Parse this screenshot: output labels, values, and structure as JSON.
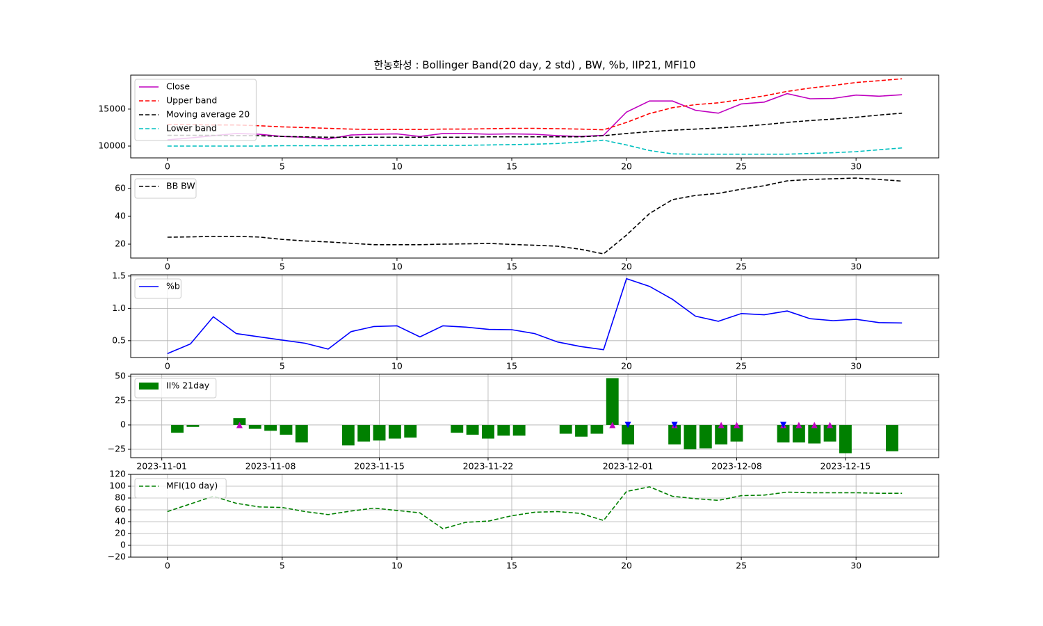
{
  "chart_data": [
    {
      "type": "line",
      "title": "한농화성 : Bollinger Band(20 day, 2 std) , BW, %b, IIP21, MFI10",
      "x": [
        0,
        1,
        2,
        3,
        4,
        5,
        6,
        7,
        8,
        9,
        10,
        11,
        12,
        13,
        14,
        15,
        16,
        17,
        18,
        19,
        20,
        21,
        22,
        23,
        24,
        25,
        26,
        27,
        28,
        29,
        30,
        31,
        32
      ],
      "series": [
        {
          "name": "Close",
          "color": "#bf00bf",
          "style": "solid",
          "values": [
            10850,
            11100,
            11400,
            11700,
            11600,
            11300,
            11200,
            10950,
            11500,
            11600,
            11650,
            11300,
            11700,
            11700,
            11600,
            11650,
            11600,
            11400,
            11300,
            11450,
            14600,
            16100,
            16100,
            14850,
            14450,
            15700,
            15950,
            17100,
            16400,
            16450,
            16900,
            16750,
            16950
          ]
        },
        {
          "name": "Upper band",
          "color": "#ff0000",
          "style": "dashed",
          "values": [
            12900,
            12900,
            12850,
            12850,
            12750,
            12600,
            12500,
            12400,
            12300,
            12250,
            12250,
            12250,
            12300,
            12300,
            12350,
            12400,
            12400,
            12350,
            12300,
            12200,
            13200,
            14400,
            15200,
            15600,
            15850,
            16300,
            16800,
            17400,
            17850,
            18200,
            18600,
            18850,
            19100
          ]
        },
        {
          "name": "Moving average 20",
          "color": "#000000",
          "style": "dashed",
          "values": [
            11450,
            11450,
            11450,
            11400,
            11400,
            11300,
            11250,
            11200,
            11200,
            11200,
            11200,
            11200,
            11200,
            11200,
            11250,
            11250,
            11250,
            11250,
            11250,
            11400,
            11700,
            11950,
            12150,
            12300,
            12450,
            12650,
            12900,
            13200,
            13450,
            13650,
            13900,
            14200,
            14450
          ]
        },
        {
          "name": "Lower band",
          "color": "#00bfbf",
          "style": "dashed",
          "values": [
            10000,
            10000,
            10000,
            10000,
            10000,
            10050,
            10050,
            10050,
            10050,
            10100,
            10100,
            10100,
            10100,
            10100,
            10150,
            10200,
            10250,
            10350,
            10550,
            10800,
            10150,
            9400,
            8950,
            8900,
            8900,
            8900,
            8900,
            8900,
            9000,
            9100,
            9250,
            9500,
            9750
          ]
        }
      ],
      "xlim": [
        -1.6,
        33.6
      ],
      "xticks": [
        0,
        5,
        10,
        15,
        20,
        25,
        30
      ],
      "ylim": [
        8400,
        19600
      ],
      "yticks": [
        10000,
        15000
      ],
      "grid": false,
      "legend": "upper left"
    },
    {
      "type": "line",
      "x": [
        0,
        1,
        2,
        3,
        4,
        5,
        6,
        7,
        8,
        9,
        10,
        11,
        12,
        13,
        14,
        15,
        16,
        17,
        18,
        19,
        20,
        21,
        22,
        23,
        24,
        25,
        26,
        27,
        28,
        29,
        30,
        31,
        32
      ],
      "series": [
        {
          "name": "BB BW",
          "color": "#000000",
          "style": "dashed",
          "values": [
            25,
            25.2,
            25.6,
            25.6,
            25.1,
            23.4,
            22.3,
            21.6,
            20.6,
            19.6,
            19.6,
            19.6,
            20,
            20.2,
            20.5,
            19.8,
            19.2,
            18.5,
            16.3,
            13,
            26.5,
            42,
            52,
            55,
            56.5,
            59.5,
            62,
            65.5,
            66.5,
            67,
            67.5,
            66.5,
            65.3
          ]
        }
      ],
      "xlim": [
        -1.6,
        33.6
      ],
      "xticks": [
        0,
        5,
        10,
        15,
        20,
        25,
        30
      ],
      "ylim": [
        10,
        70
      ],
      "yticks": [
        20,
        40,
        60
      ],
      "grid": false,
      "legend": "upper left"
    },
    {
      "type": "line",
      "x": [
        0,
        1,
        2,
        3,
        4,
        5,
        6,
        7,
        8,
        9,
        10,
        11,
        12,
        13,
        14,
        15,
        16,
        17,
        18,
        19,
        20,
        21,
        22,
        23,
        24,
        25,
        26,
        27,
        28,
        29,
        30,
        31,
        32
      ],
      "series": [
        {
          "name": "%b",
          "color": "#0000ff",
          "style": "solid",
          "values": [
            0.3,
            0.45,
            0.87,
            0.61,
            0.56,
            0.51,
            0.46,
            0.37,
            0.64,
            0.72,
            0.73,
            0.56,
            0.73,
            0.71,
            0.675,
            0.67,
            0.61,
            0.48,
            0.41,
            0.36,
            1.46,
            1.34,
            1.14,
            0.88,
            0.8,
            0.92,
            0.9,
            0.96,
            0.84,
            0.81,
            0.83,
            0.78,
            0.775
          ]
        }
      ],
      "xlim": [
        -1.6,
        33.6
      ],
      "xticks": [
        0,
        5,
        10,
        15,
        20,
        25,
        30
      ],
      "ylim": [
        0.24,
        1.52
      ],
      "yticks": [
        0.5,
        {
          "value": 1,
          "label": "1.0"
        },
        1.5
      ],
      "grid": true,
      "legend": "upper left"
    },
    {
      "type": "bar",
      "x": [
        "2023-11-02",
        "2023-11-03",
        "2023-11-06",
        "2023-11-07",
        "2023-11-08",
        "2023-11-09",
        "2023-11-10",
        "2023-11-13",
        "2023-11-14",
        "2023-11-15",
        "2023-11-16",
        "2023-11-17",
        "2023-11-20",
        "2023-11-21",
        "2023-11-22",
        "2023-11-23",
        "2023-11-24",
        "2023-11-27",
        "2023-11-28",
        "2023-11-29",
        "2023-11-30",
        "2023-12-01",
        "2023-12-04",
        "2023-12-05",
        "2023-12-06",
        "2023-12-07",
        "2023-12-08",
        "2023-12-11",
        "2023-12-12",
        "2023-12-13",
        "2023-12-14",
        "2023-12-15",
        "2023-12-18"
      ],
      "series": [
        {
          "name": "II% 21day",
          "color": "#008000",
          "values": [
            -8,
            -2,
            7,
            -4,
            -6,
            -10,
            -18,
            -21,
            -17,
            -16,
            -14,
            -13,
            -8,
            -10,
            -14,
            -11,
            -11,
            -9,
            -12,
            -9,
            48,
            -20,
            -20,
            -25,
            -24,
            -20,
            -17,
            -18,
            -18,
            -19,
            -17,
            -29,
            -27
          ]
        }
      ],
      "markers": [
        {
          "marker": "^",
          "color": "#bf00bf",
          "x": [
            "2023-11-06",
            "2023-11-30",
            "2023-12-04",
            "2023-12-07",
            "2023-12-08",
            "2023-12-11",
            "2023-12-12",
            "2023-12-13",
            "2023-12-14"
          ],
          "values": [
            0,
            0,
            0,
            0,
            0,
            0,
            0,
            0,
            0
          ]
        },
        {
          "marker": "v",
          "color": "#0000ff",
          "x": [
            "2023-12-01",
            "2023-12-04",
            "2023-12-11"
          ],
          "values": [
            0,
            0,
            0
          ]
        }
      ],
      "xlim": [
        "2023-10-30",
        "2023-12-21"
      ],
      "xticks": [
        "2023-11-01",
        "2023-11-08",
        "2023-11-15",
        "2023-11-22",
        "2023-12-01",
        "2023-12-08",
        "2023-12-15"
      ],
      "ylim": [
        -33.6,
        52.1
      ],
      "yticks": [
        {
          "value": -25,
          "label": "−25"
        },
        0,
        25,
        50
      ],
      "grid": true,
      "legend": "upper left"
    },
    {
      "type": "line",
      "x": [
        0,
        1,
        2,
        3,
        4,
        5,
        6,
        7,
        8,
        9,
        10,
        11,
        12,
        13,
        14,
        15,
        16,
        17,
        18,
        19,
        20,
        21,
        22,
        23,
        24,
        25,
        26,
        27,
        28,
        29,
        30,
        31,
        32
      ],
      "series": [
        {
          "name": "MFI(10 day)",
          "color": "#008000",
          "style": "dashed",
          "values": [
            57,
            70,
            83,
            71,
            65,
            64,
            57,
            52,
            58,
            63,
            59,
            55,
            28,
            39,
            41,
            50,
            56,
            57,
            54,
            42,
            91,
            99,
            83,
            79,
            76,
            84,
            85,
            90,
            89,
            89,
            89,
            88,
            88
          ]
        }
      ],
      "xlim": [
        -1.6,
        33.6
      ],
      "xticks": [
        0,
        5,
        10,
        15,
        20,
        25,
        30
      ],
      "ylim": [
        -20,
        120
      ],
      "yticks": [
        {
          "value": -20,
          "label": "−20"
        },
        0,
        20,
        40,
        60,
        80,
        100,
        120
      ],
      "grid": true,
      "legend": "upper left"
    }
  ]
}
